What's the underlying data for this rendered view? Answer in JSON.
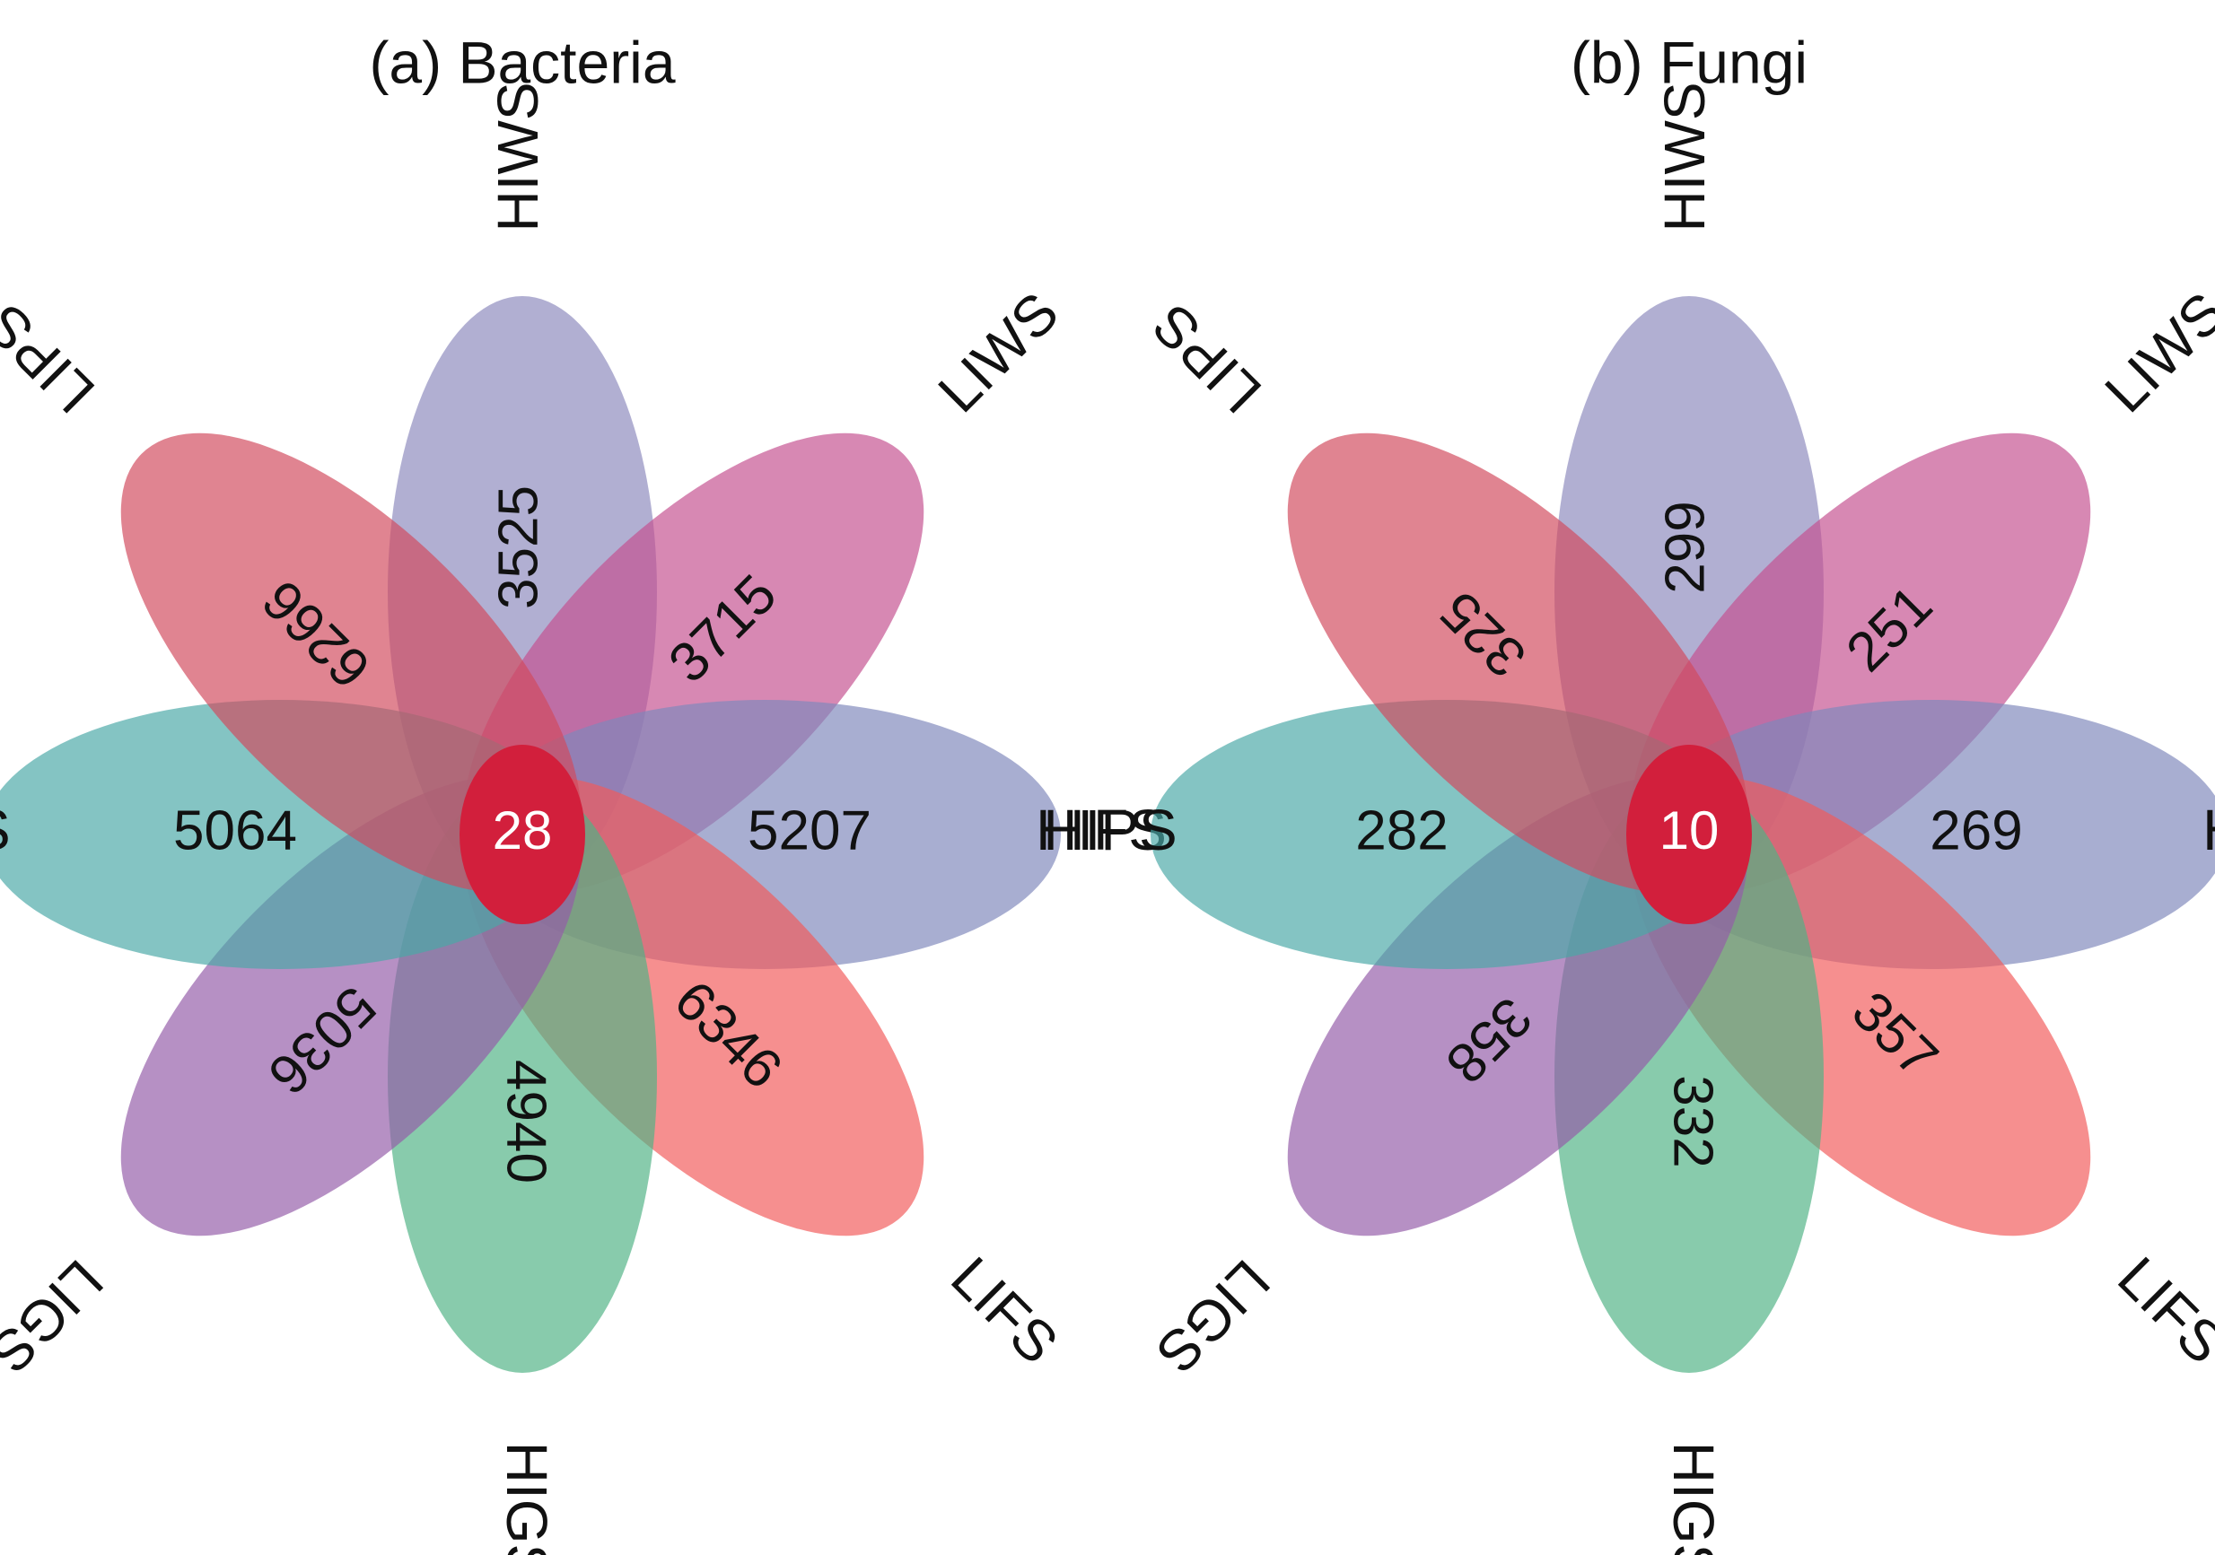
{
  "panels": [
    {
      "title": "(a) Bacteria",
      "center": "28",
      "petals": [
        {
          "set": "HIWS",
          "count": "3525",
          "color": "#8c89bd"
        },
        {
          "set": "LIWS",
          "count": "3715",
          "color": "#c4508f"
        },
        {
          "set": "HIFS",
          "count": "5207",
          "color": "#7f87bb"
        },
        {
          "set": "LIFS",
          "count": "6346",
          "color": "#f25a5a"
        },
        {
          "set": "HIGS",
          "count": "4940",
          "color": "#4fb384"
        },
        {
          "set": "LIGS",
          "count": "5036",
          "color": "#935ca8"
        },
        {
          "set": "HIPS",
          "count": "5064",
          "color": "#4aa8a6"
        },
        {
          "set": "LIPS",
          "count": "6266",
          "color": "#d14a5d"
        }
      ]
    },
    {
      "title": "(b) Fungi",
      "center": "10",
      "petals": [
        {
          "set": "HIWS",
          "count": "299",
          "color": "#8c89bd"
        },
        {
          "set": "LIWS",
          "count": "251",
          "color": "#c4508f"
        },
        {
          "set": "HIFS",
          "count": "269",
          "color": "#7f87bb"
        },
        {
          "set": "LIFS",
          "count": "357",
          "color": "#f25a5a"
        },
        {
          "set": "HIGS",
          "count": "332",
          "color": "#4fb384"
        },
        {
          "set": "LIGS",
          "count": "358",
          "color": "#935ca8"
        },
        {
          "set": "HIPS",
          "count": "282",
          "color": "#4aa8a6"
        },
        {
          "set": "LIPS",
          "count": "325",
          "color": "#d14a5d"
        }
      ]
    }
  ],
  "center_color": "#d21f3c"
}
